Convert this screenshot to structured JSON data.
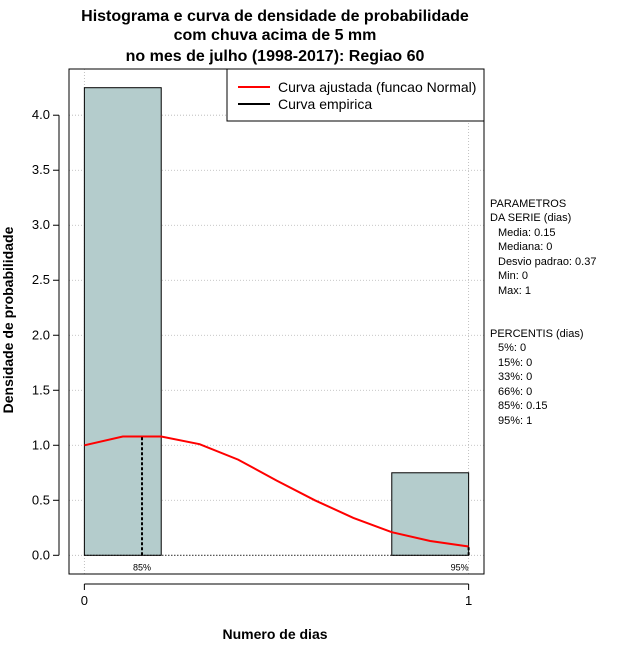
{
  "chart_data": {
    "type": "bar",
    "title_lines": [
      "Histograma e curva de densidade de probabilidade",
      "com chuva acima de 5 mm",
      "no mes de julho (1998-2017): Regiao 60"
    ],
    "xlabel": "Numero de dias",
    "ylabel": "Densidade de probabilidade",
    "xlim": [
      -0.04,
      1.04
    ],
    "ylim": [
      -0.17,
      4.42
    ],
    "xticks": [
      0,
      1
    ],
    "yticks": [
      "0.0",
      "0.5",
      "1.0",
      "1.5",
      "2.0",
      "2.5",
      "3.0",
      "3.5",
      "4.0"
    ],
    "bars": [
      {
        "x0": 0.0,
        "x1": 0.2,
        "height": 4.25
      },
      {
        "x0": 0.8,
        "x1": 1.0,
        "height": 0.75
      }
    ],
    "normal_curve": {
      "name": "Curva ajustada (funcao Normal)",
      "color": "#ff0000",
      "x": [
        0.0,
        0.1,
        0.2,
        0.3,
        0.4,
        0.5,
        0.6,
        0.7,
        0.8,
        0.9,
        1.0
      ],
      "y": [
        1.0,
        1.08,
        1.08,
        1.01,
        0.87,
        0.68,
        0.5,
        0.34,
        0.21,
        0.13,
        0.08
      ]
    },
    "empirical_curve": {
      "name": "Curva empirica",
      "color": "#000000"
    },
    "percentile_markers": [
      {
        "label": "85%",
        "x": 0.15,
        "y": 1.08
      },
      {
        "label": "95%",
        "x": 1.0,
        "y": 0.08
      }
    ],
    "bar_color": "#b4cccc",
    "grid": true,
    "legend_position": "top-right"
  },
  "side_panel": {
    "params_header": [
      "PARAMETROS",
      "DA SERIE (dias)"
    ],
    "params": [
      "Media: 0.15",
      "Mediana: 0",
      "Desvio padrao: 0.37",
      "Min: 0",
      "Max: 1"
    ],
    "percentis_header": "PERCENTIS (dias)",
    "percentis": [
      "5%: 0",
      "15%: 0",
      "33%: 0",
      "66%: 0",
      "85%: 0.15",
      "95%: 1"
    ]
  }
}
